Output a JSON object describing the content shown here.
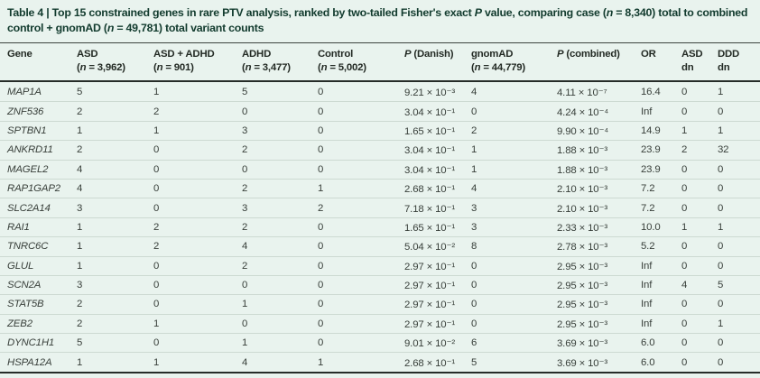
{
  "table": {
    "title": "Table 4 | Top 15 constrained genes in rare PTV analysis, ranked by two-tailed Fisher's exact P value, comparing case (n = 8,340) total to combined control + gnomAD (n = 49,781) total variant counts",
    "columns": [
      {
        "line1": "Gene",
        "line2": ""
      },
      {
        "line1": "ASD",
        "line2": "(n = 3,962)"
      },
      {
        "line1": "ASD + ADHD",
        "line2": "(n = 901)"
      },
      {
        "line1": "ADHD",
        "line2": "(n = 3,477)"
      },
      {
        "line1": "Control",
        "line2": "(n = 5,002)"
      },
      {
        "line1": "P (Danish)",
        "line2": ""
      },
      {
        "line1": "gnomAD",
        "line2": "(n = 44,779)"
      },
      {
        "line1": "P (combined)",
        "line2": ""
      },
      {
        "line1": "OR",
        "line2": ""
      },
      {
        "line1": "ASD",
        "line2": "dn"
      },
      {
        "line1": "DDD",
        "line2": "dn"
      }
    ],
    "rows": [
      [
        "MAP1A",
        "5",
        "1",
        "5",
        "0",
        "9.21 × 10⁻³",
        "4",
        "4.11 × 10⁻⁷",
        "16.4",
        "0",
        "1"
      ],
      [
        "ZNF536",
        "2",
        "2",
        "0",
        "0",
        "3.04 × 10⁻¹",
        "0",
        "4.24 × 10⁻⁴",
        "Inf",
        "0",
        "0"
      ],
      [
        "SPTBN1",
        "1",
        "1",
        "3",
        "0",
        "1.65 × 10⁻¹",
        "2",
        "9.90 × 10⁻⁴",
        "14.9",
        "1",
        "1"
      ],
      [
        "ANKRD11",
        "2",
        "0",
        "2",
        "0",
        "3.04 × 10⁻¹",
        "1",
        "1.88 × 10⁻³",
        "23.9",
        "2",
        "32"
      ],
      [
        "MAGEL2",
        "4",
        "0",
        "0",
        "0",
        "3.04 × 10⁻¹",
        "1",
        "1.88 × 10⁻³",
        "23.9",
        "0",
        "0"
      ],
      [
        "RAP1GAP2",
        "4",
        "0",
        "2",
        "1",
        "2.68 × 10⁻¹",
        "4",
        "2.10 × 10⁻³",
        "7.2",
        "0",
        "0"
      ],
      [
        "SLC2A14",
        "3",
        "0",
        "3",
        "2",
        "7.18 × 10⁻¹",
        "3",
        "2.10 × 10⁻³",
        "7.2",
        "0",
        "0"
      ],
      [
        "RAI1",
        "1",
        "2",
        "2",
        "0",
        "1.65 × 10⁻¹",
        "3",
        "2.33 × 10⁻³",
        "10.0",
        "1",
        "1"
      ],
      [
        "TNRC6C",
        "1",
        "2",
        "4",
        "0",
        "5.04 × 10⁻²",
        "8",
        "2.78 × 10⁻³",
        "5.2",
        "0",
        "0"
      ],
      [
        "GLUL",
        "1",
        "0",
        "2",
        "0",
        "2.97 × 10⁻¹",
        "0",
        "2.95 × 10⁻³",
        "Inf",
        "0",
        "0"
      ],
      [
        "SCN2A",
        "3",
        "0",
        "0",
        "0",
        "2.97 × 10⁻¹",
        "0",
        "2.95 × 10⁻³",
        "Inf",
        "4",
        "5"
      ],
      [
        "STAT5B",
        "2",
        "0",
        "1",
        "0",
        "2.97 × 10⁻¹",
        "0",
        "2.95 × 10⁻³",
        "Inf",
        "0",
        "0"
      ],
      [
        "ZEB2",
        "2",
        "1",
        "0",
        "0",
        "2.97 × 10⁻¹",
        "0",
        "2.95 × 10⁻³",
        "Inf",
        "0",
        "1"
      ],
      [
        "DYNC1H1",
        "5",
        "0",
        "1",
        "0",
        "9.01 × 10⁻²",
        "6",
        "3.69 × 10⁻³",
        "6.0",
        "0",
        "0"
      ],
      [
        "HSPA12A",
        "1",
        "1",
        "4",
        "1",
        "2.68 × 10⁻¹",
        "5",
        "3.69 × 10⁻³",
        "6.0",
        "0",
        "0"
      ]
    ]
  },
  "colors": {
    "background": "#e9f3ee",
    "title_text": "#123b2e",
    "header_text": "#232a24",
    "body_text": "#383f3a",
    "row_separator": "#cddad2",
    "rule_dark": "#262c28"
  }
}
